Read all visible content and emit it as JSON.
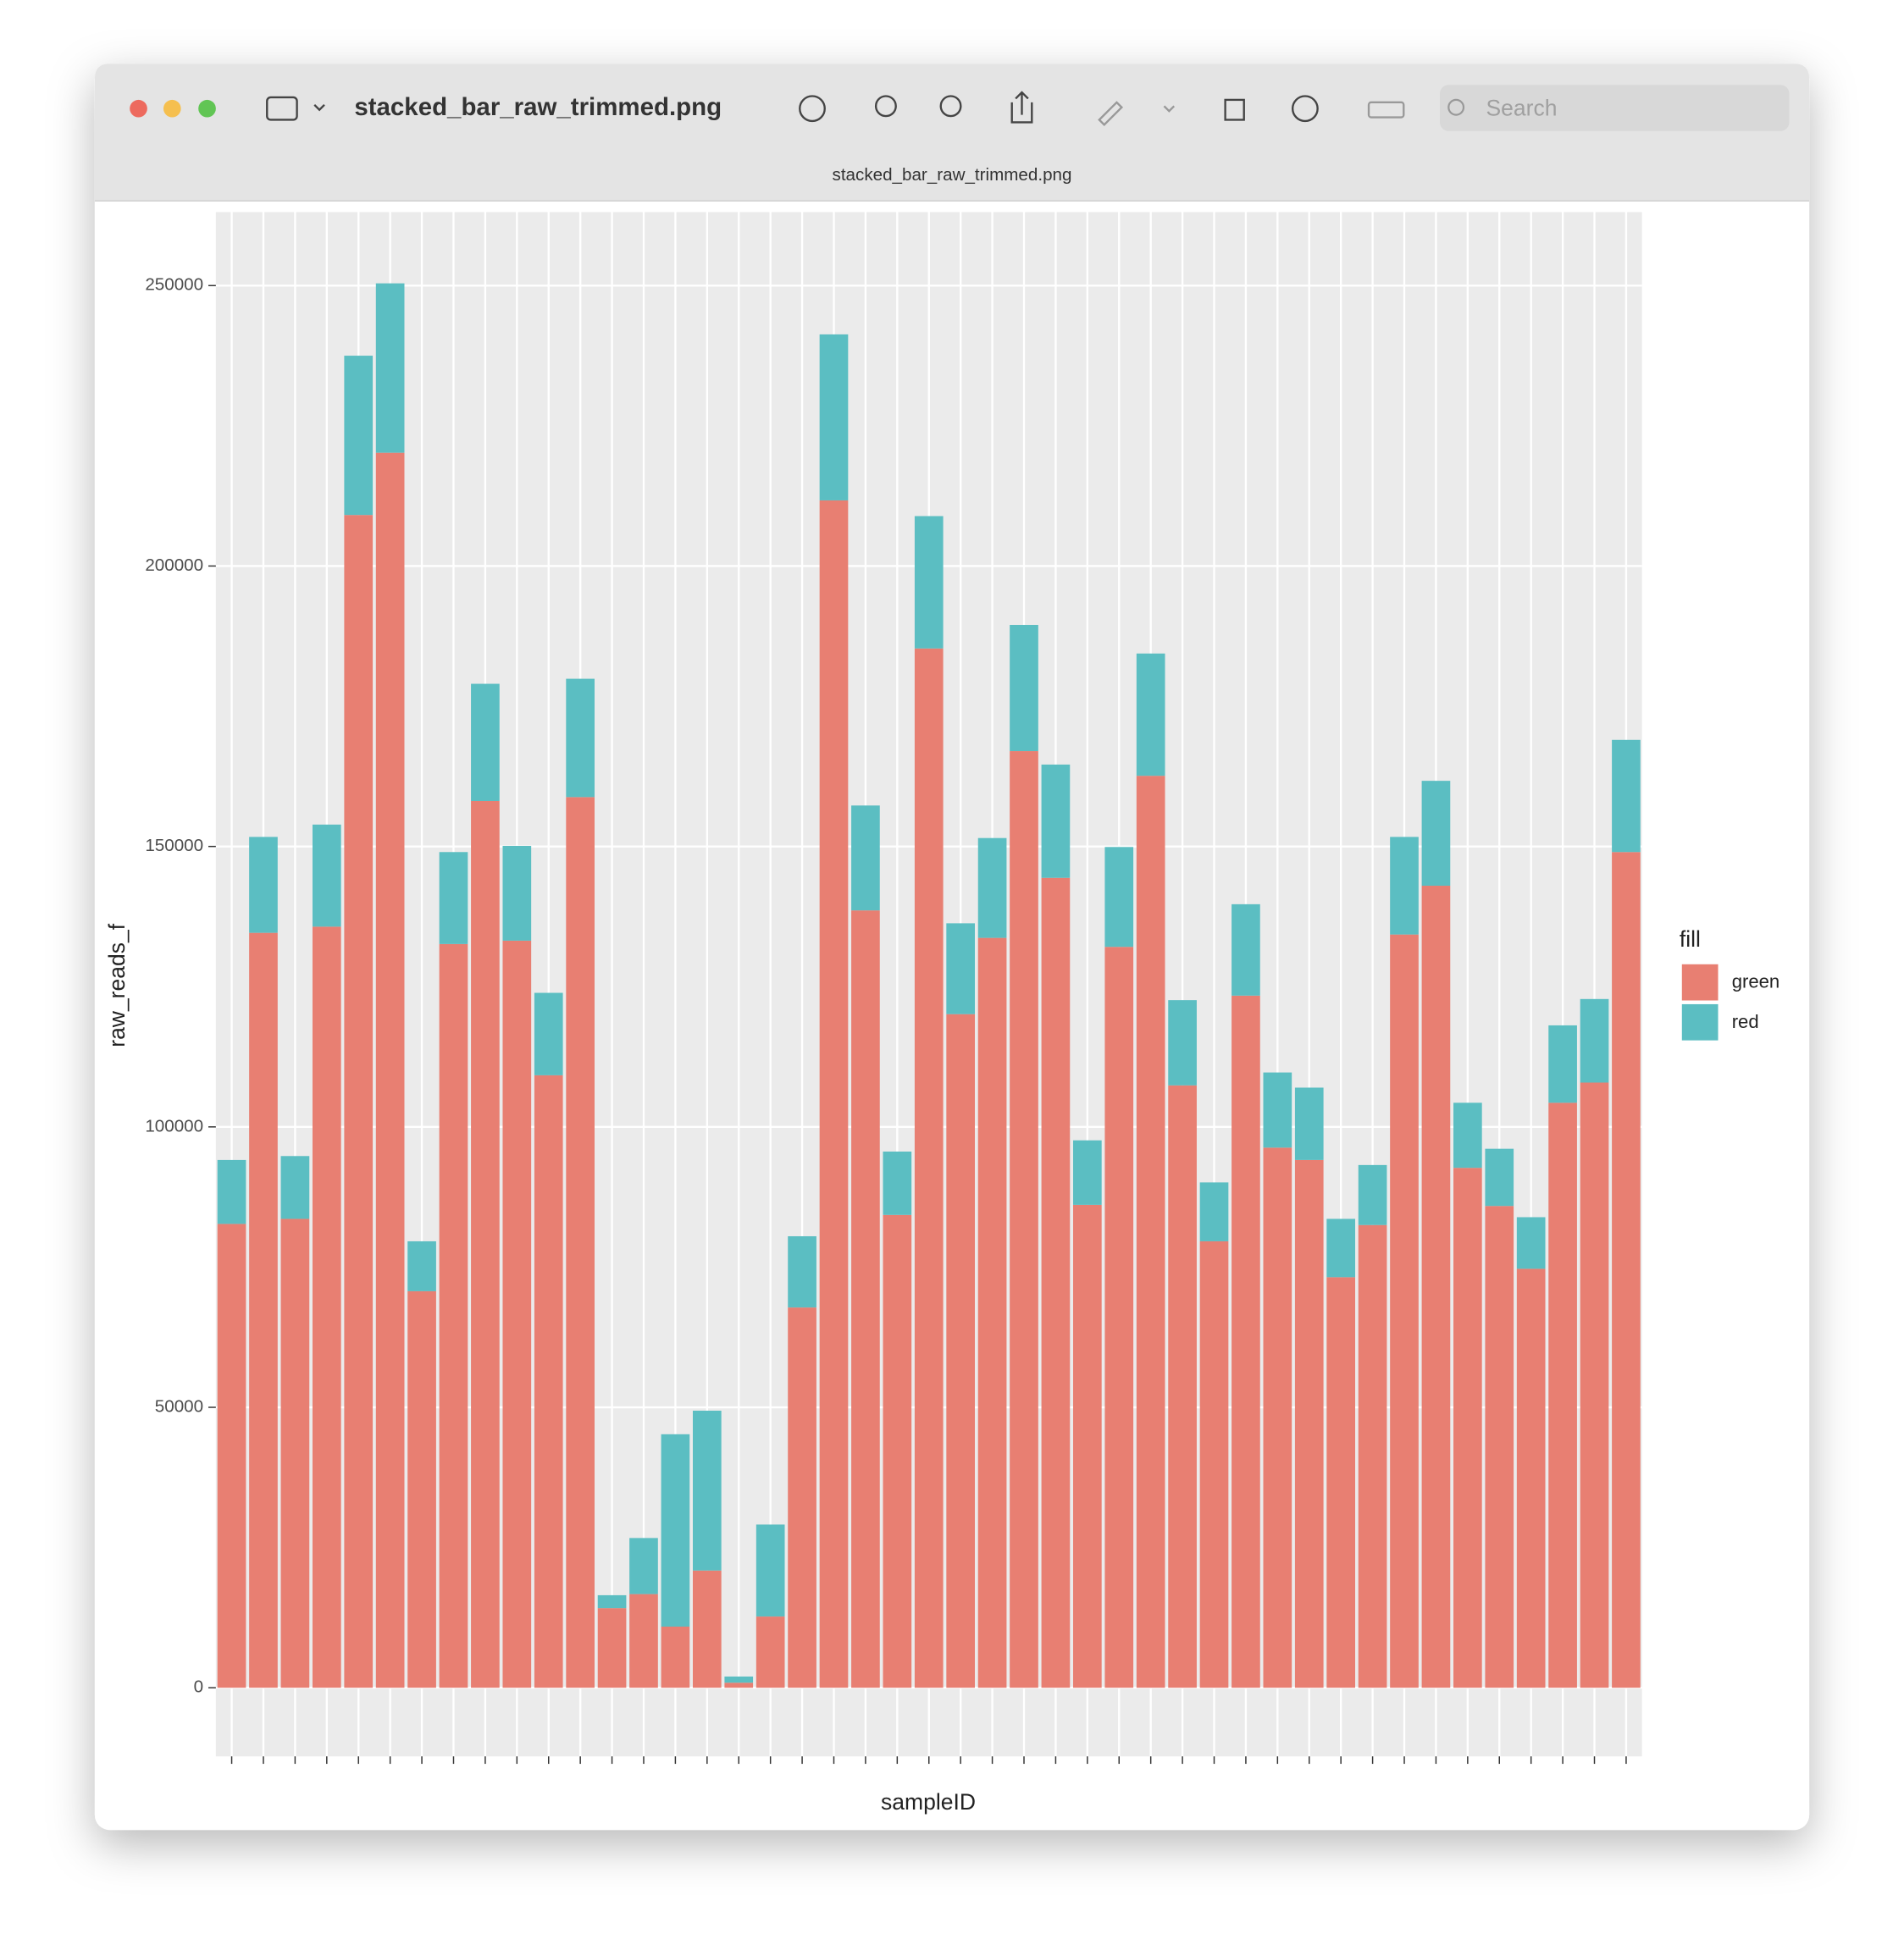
{
  "window": {
    "title": "stacked_bar_raw_trimmed.png",
    "tab_title": "stacked_bar_raw_trimmed.png",
    "search_placeholder": "Search"
  },
  "chart_data": {
    "type": "stacked_bar",
    "x_label": "sampleID",
    "y_label": "raw_reads_f",
    "legend_title": "fill",
    "categories": [
      null,
      null,
      null,
      null,
      null,
      null,
      null,
      null,
      null,
      null,
      null,
      null,
      null,
      null,
      null,
      null,
      null,
      null,
      null,
      null,
      null,
      null,
      null,
      null,
      null,
      null,
      null,
      null,
      null,
      null,
      null,
      null,
      null,
      null,
      null,
      null,
      null,
      null,
      null,
      null,
      null,
      null,
      null,
      null,
      null
    ],
    "series": [
      {
        "name": "green",
        "color": "#e87f72",
        "values": [
          82700,
          134600,
          83600,
          135700,
          209100,
          220200,
          70700,
          132600,
          158100,
          133200,
          109200,
          158800,
          14200,
          16700,
          10900,
          20900,
          900,
          12700,
          67800,
          211700,
          138600,
          84300,
          185300,
          120100,
          133700,
          167000,
          144400,
          86100,
          132100,
          162600,
          107400,
          79600,
          123400,
          96300,
          94100,
          73200,
          82500,
          134300,
          143000,
          92700,
          85900,
          74700,
          104300,
          107900,
          149000
        ]
      },
      {
        "name": "red",
        "color": "#5bbec2",
        "values": [
          11400,
          17100,
          11200,
          18200,
          28400,
          30200,
          8900,
          16400,
          20900,
          16900,
          14700,
          21100,
          2300,
          10000,
          34300,
          28500,
          1100,
          16400,
          12700,
          29600,
          18700,
          11300,
          23600,
          16200,
          17800,
          22500,
          20200,
          11500,
          17800,
          21800,
          15200,
          10500,
          16300,
          13400,
          12900,
          10400,
          10700,
          17400,
          18700,
          11600,
          10200,
          9200,
          13800,
          14900,
          20000
        ]
      }
    ],
    "ylim": [
      -12233,
      263100
    ],
    "yticks": [
      0,
      50000,
      100000,
      150000,
      200000,
      250000
    ],
    "grid": true,
    "legend": "right"
  }
}
